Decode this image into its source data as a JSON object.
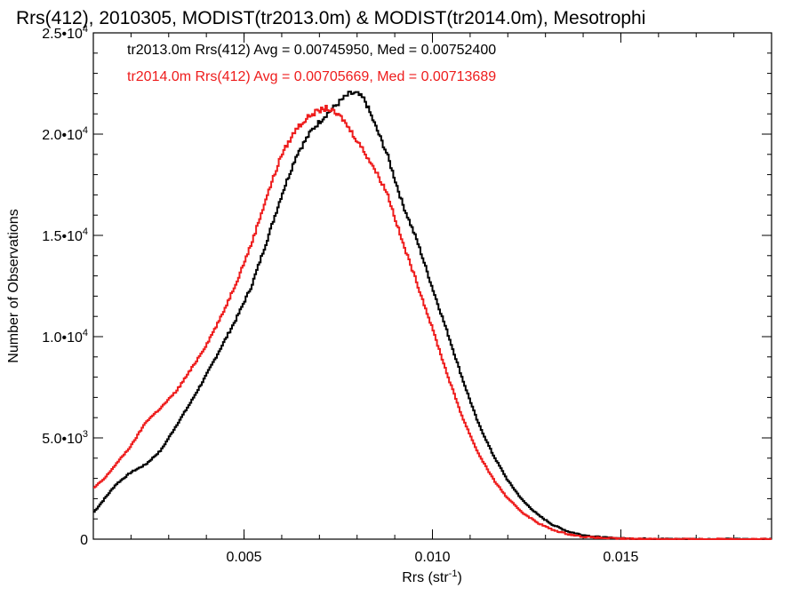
{
  "chart_data": {
    "type": "line",
    "title": "Rrs(412), 2010305, MODIST(tr2013.0m) & MODIST(tr2014.0m), Mesotrophi",
    "xlabel": "Rrs (str",
    "xlabel_sup": "-1",
    "xlabel_end": ")",
    "ylabel": "Number of Observations",
    "xlim": [
      0.001,
      0.019
    ],
    "ylim": [
      0,
      25000
    ],
    "x_ticks": [
      {
        "value": 0.005,
        "label": "0.005"
      },
      {
        "value": 0.01,
        "label": "0.010"
      },
      {
        "value": 0.015,
        "label": "0.015"
      }
    ],
    "y_ticks": [
      {
        "value": 0,
        "base": "0",
        "exp": ""
      },
      {
        "value": 5000,
        "base": "5.0•10",
        "exp": "3"
      },
      {
        "value": 10000,
        "base": "1.0•10",
        "exp": "4"
      },
      {
        "value": 15000,
        "base": "1.5•10",
        "exp": "4"
      },
      {
        "value": 20000,
        "base": "2.0•10",
        "exp": "4"
      },
      {
        "value": 25000,
        "base": "2.5•10",
        "exp": "4"
      }
    ],
    "series": [
      {
        "color": "#000000",
        "stats_label": "tr2013.0m Rrs(412) Avg = 0.00745950, Med = 0.00752400",
        "points": [
          [
            0.001,
            1300
          ],
          [
            0.0013,
            2000
          ],
          [
            0.0016,
            2700
          ],
          [
            0.002,
            3300
          ],
          [
            0.0024,
            3700
          ],
          [
            0.0028,
            4400
          ],
          [
            0.0032,
            5600
          ],
          [
            0.0036,
            6800
          ],
          [
            0.004,
            8100
          ],
          [
            0.0044,
            9500
          ],
          [
            0.0048,
            10900
          ],
          [
            0.0052,
            12500
          ],
          [
            0.0056,
            14700
          ],
          [
            0.006,
            17000
          ],
          [
            0.0064,
            19000
          ],
          [
            0.0068,
            20200
          ],
          [
            0.0072,
            21000
          ],
          [
            0.0076,
            21700
          ],
          [
            0.0078,
            22000
          ],
          [
            0.008,
            22000
          ],
          [
            0.0082,
            21700
          ],
          [
            0.0084,
            20800
          ],
          [
            0.0088,
            19000
          ],
          [
            0.0092,
            16600
          ],
          [
            0.0096,
            14700
          ],
          [
            0.01,
            12400
          ],
          [
            0.0104,
            10200
          ],
          [
            0.0108,
            7900
          ],
          [
            0.0112,
            5800
          ],
          [
            0.0116,
            4200
          ],
          [
            0.012,
            2900
          ],
          [
            0.0124,
            1900
          ],
          [
            0.0128,
            1200
          ],
          [
            0.0132,
            700
          ],
          [
            0.0136,
            380
          ],
          [
            0.014,
            200
          ],
          [
            0.0145,
            90
          ],
          [
            0.015,
            40
          ],
          [
            0.016,
            12
          ],
          [
            0.017,
            4
          ],
          [
            0.019,
            0
          ]
        ]
      },
      {
        "color": "#ee1c1c",
        "stats_label": "tr2014.0m Rrs(412) Avg = 0.00705669, Med = 0.00713689",
        "points": [
          [
            0.001,
            2500
          ],
          [
            0.0013,
            3000
          ],
          [
            0.0016,
            3700
          ],
          [
            0.002,
            4600
          ],
          [
            0.0024,
            5800
          ],
          [
            0.0028,
            6500
          ],
          [
            0.0032,
            7300
          ],
          [
            0.0036,
            8400
          ],
          [
            0.004,
            9600
          ],
          [
            0.0044,
            11000
          ],
          [
            0.0048,
            12700
          ],
          [
            0.0052,
            14600
          ],
          [
            0.0056,
            16900
          ],
          [
            0.006,
            19000
          ],
          [
            0.0064,
            20300
          ],
          [
            0.0068,
            21000
          ],
          [
            0.0072,
            21300
          ],
          [
            0.0076,
            20800
          ],
          [
            0.008,
            19700
          ],
          [
            0.0084,
            18500
          ],
          [
            0.0088,
            17100
          ],
          [
            0.0092,
            14700
          ],
          [
            0.0096,
            12600
          ],
          [
            0.01,
            10400
          ],
          [
            0.0104,
            8100
          ],
          [
            0.0108,
            6000
          ],
          [
            0.0112,
            4300
          ],
          [
            0.0116,
            3000
          ],
          [
            0.012,
            2000
          ],
          [
            0.0124,
            1300
          ],
          [
            0.0128,
            800
          ],
          [
            0.0132,
            450
          ],
          [
            0.0136,
            250
          ],
          [
            0.014,
            120
          ],
          [
            0.0145,
            60
          ],
          [
            0.015,
            25
          ],
          [
            0.016,
            8
          ],
          [
            0.017,
            2
          ],
          [
            0.019,
            0
          ]
        ]
      }
    ]
  }
}
